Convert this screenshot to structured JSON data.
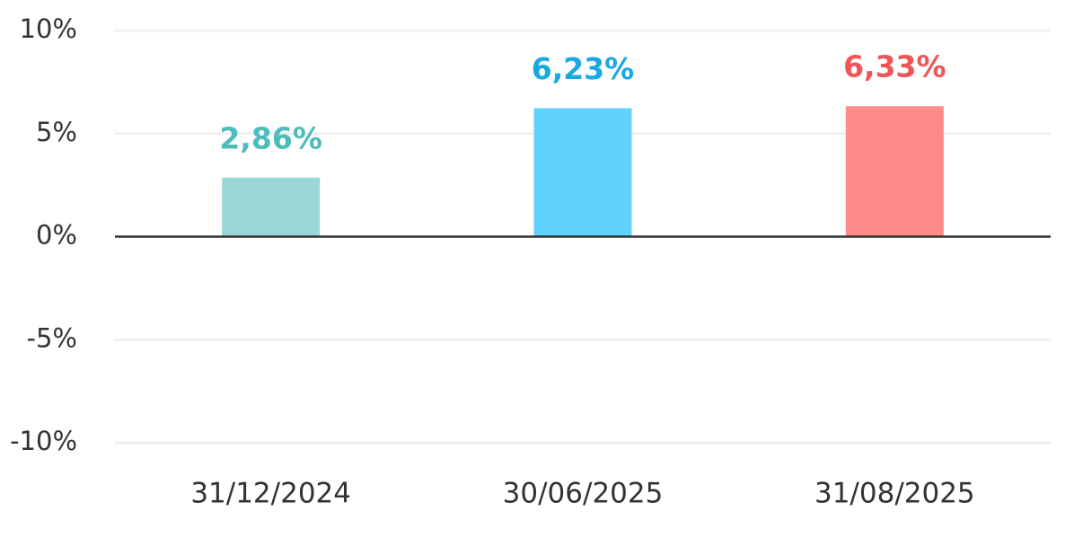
{
  "chart_data": {
    "type": "bar",
    "categories": [
      "31/12/2024",
      "30/06/2025",
      "31/08/2025"
    ],
    "values": [
      2.86,
      6.23,
      6.33
    ],
    "value_labels": [
      "2,86%",
      "6,23%",
      "6,33%"
    ],
    "colors": [
      "#99d8d6",
      "#5fd3fe",
      "#ff8a8a"
    ],
    "value_label_colors": [
      "#4dbdb9",
      "#1aa8e0",
      "#ee5556"
    ],
    "ylim": [
      -10,
      10
    ],
    "yticks": [
      {
        "value": -10,
        "label": "-10%"
      },
      {
        "value": -5,
        "label": "-5%"
      },
      {
        "value": 0,
        "label": "0%"
      },
      {
        "value": 5,
        "label": "5%"
      },
      {
        "value": 10,
        "label": "10%"
      }
    ],
    "grid": true
  }
}
